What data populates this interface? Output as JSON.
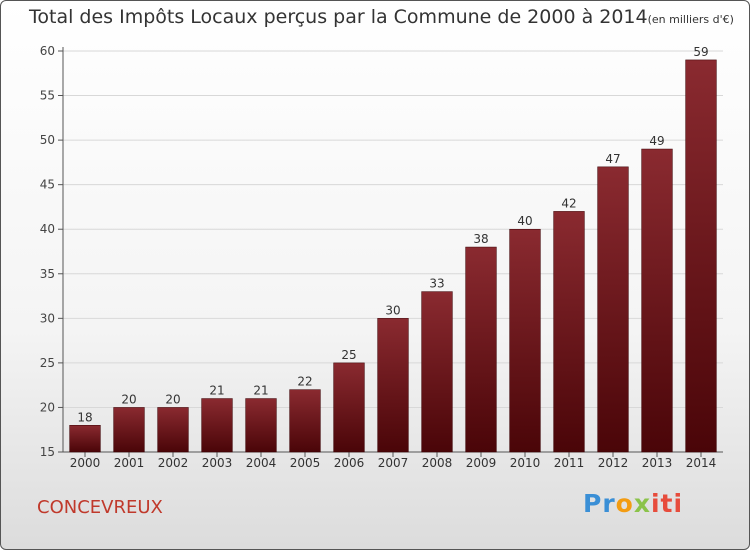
{
  "chart_data": {
    "type": "bar",
    "title": "Total des Impôts Locaux perçus par la Commune de 2000 à 2014",
    "title_unit": "(en milliers d'€)",
    "categories": [
      "2000",
      "2001",
      "2002",
      "2003",
      "2004",
      "2005",
      "2006",
      "2007",
      "2008",
      "2009",
      "2010",
      "2011",
      "2012",
      "2013",
      "2014"
    ],
    "values": [
      18,
      20,
      20,
      21,
      21,
      22,
      25,
      30,
      33,
      38,
      40,
      42,
      47,
      49,
      59
    ],
    "ylim": [
      15,
      60
    ],
    "yticks": [
      15,
      20,
      25,
      30,
      35,
      40,
      45,
      50,
      55,
      60
    ],
    "grid": true,
    "bar_color": "#7a1a1f",
    "xlabel": "",
    "ylabel": ""
  },
  "footer": {
    "commune": "CONCEVREUX",
    "logo_parts": [
      "Pr",
      "o",
      "x",
      "iti"
    ]
  }
}
